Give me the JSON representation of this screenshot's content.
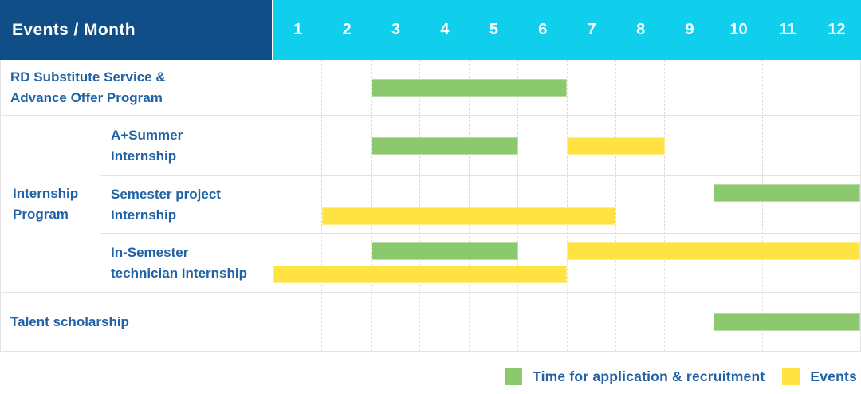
{
  "colors": {
    "header_bg": "#0f4e86",
    "month_header_bg": "#10cfec",
    "application_bar": "#8bc86e",
    "events_bar": "#ffe342",
    "label_text": "#2062a5",
    "grid_line": "#dcdcdc",
    "row_border": "#e3e3e3"
  },
  "chart_data": {
    "type": "gantt",
    "title": "Events / Month",
    "months": [
      "1",
      "2",
      "3",
      "4",
      "5",
      "6",
      "7",
      "8",
      "9",
      "10",
      "11",
      "12"
    ],
    "x_range": [
      1,
      12
    ],
    "legend": [
      {
        "key": "application",
        "label": "Time for application & recruitment",
        "color": "#8bc86e"
      },
      {
        "key": "events",
        "label": "Events",
        "color": "#ffe342"
      }
    ],
    "groups": {
      "internship-program": {
        "label": "Internship Program",
        "label_lines": [
          "Internship",
          "Program"
        ]
      }
    },
    "rows": [
      {
        "id": "rd-substitute-service",
        "label": "RD Substitute Service & Advance Offer Program",
        "label_lines": [
          "RD Substitute Service &",
          "Advance Offer Program"
        ],
        "group": null,
        "bars": [
          {
            "type": "application",
            "start_month": 3,
            "end_month": 6,
            "line": 0
          }
        ]
      },
      {
        "id": "a-plus-summer-internship",
        "label": "A+Summer Internship",
        "label_lines": [
          "A+Summer",
          "Internship"
        ],
        "group": "internship-program",
        "bars": [
          {
            "type": "application",
            "start_month": 3,
            "end_month": 5,
            "line": 0
          },
          {
            "type": "events",
            "start_month": 7,
            "end_month": 8,
            "line": 0
          }
        ]
      },
      {
        "id": "semester-project-internship",
        "label": "Semester project Internship",
        "label_lines": [
          "Semester project",
          "Internship"
        ],
        "group": "internship-program",
        "bars": [
          {
            "type": "application",
            "start_month": 10,
            "end_month": 12,
            "line": 0
          },
          {
            "type": "events",
            "start_month": 2,
            "end_month": 7,
            "line": 1
          }
        ]
      },
      {
        "id": "in-semester-technician-internship",
        "label": "In-Semester technician Internship",
        "label_lines": [
          "In-Semester",
          "technician Internship"
        ],
        "group": "internship-program",
        "bars": [
          {
            "type": "application",
            "start_month": 3,
            "end_month": 5,
            "line": 0
          },
          {
            "type": "events",
            "start_month": 7,
            "end_month": 12,
            "line": 0
          },
          {
            "type": "events",
            "start_month": 1,
            "end_month": 6,
            "line": 1
          }
        ]
      },
      {
        "id": "talent-scholarship",
        "label": "Talent scholarship",
        "label_lines": [
          "Talent scholarship"
        ],
        "group": null,
        "bars": [
          {
            "type": "application",
            "start_month": 10,
            "end_month": 12,
            "line": 0
          }
        ]
      }
    ]
  }
}
